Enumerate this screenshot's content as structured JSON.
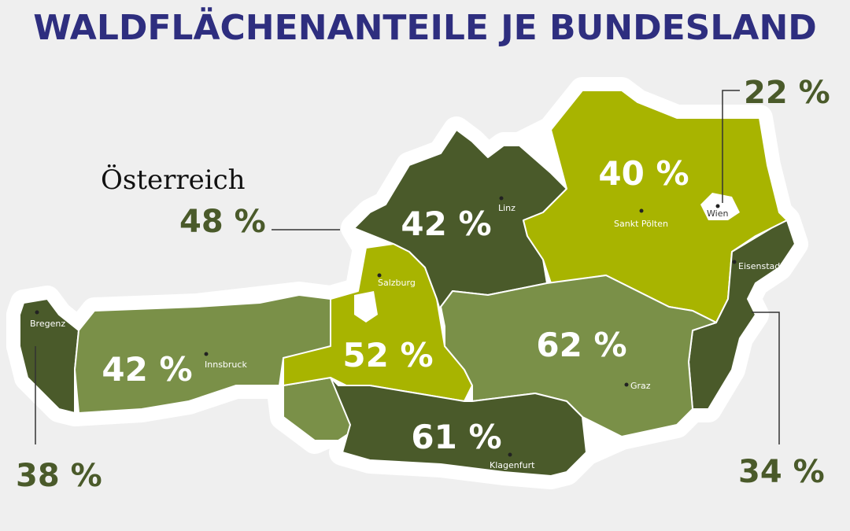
{
  "header": {
    "title": "WALDFLÄCHENANTEILE JE BUNDESLAND"
  },
  "austria": {
    "label": "Österreich",
    "share": "48 %"
  },
  "regions": [
    {
      "capital": "Bregenz",
      "share": "38 %"
    },
    {
      "capital": "Innsbruck",
      "share": "42 %"
    },
    {
      "capital": "Salzburg",
      "share": "52 %"
    },
    {
      "capital": "Linz",
      "share": "42 %"
    },
    {
      "capital": "Sankt Pölten",
      "share": "40 %"
    },
    {
      "capital": "Wien",
      "share": "22 %"
    },
    {
      "capital": "Eisenstadt",
      "share": "34 %"
    },
    {
      "capital": "Graz",
      "share": "62 %"
    },
    {
      "capital": "Klagenfurt",
      "share": "61 %"
    }
  ]
}
